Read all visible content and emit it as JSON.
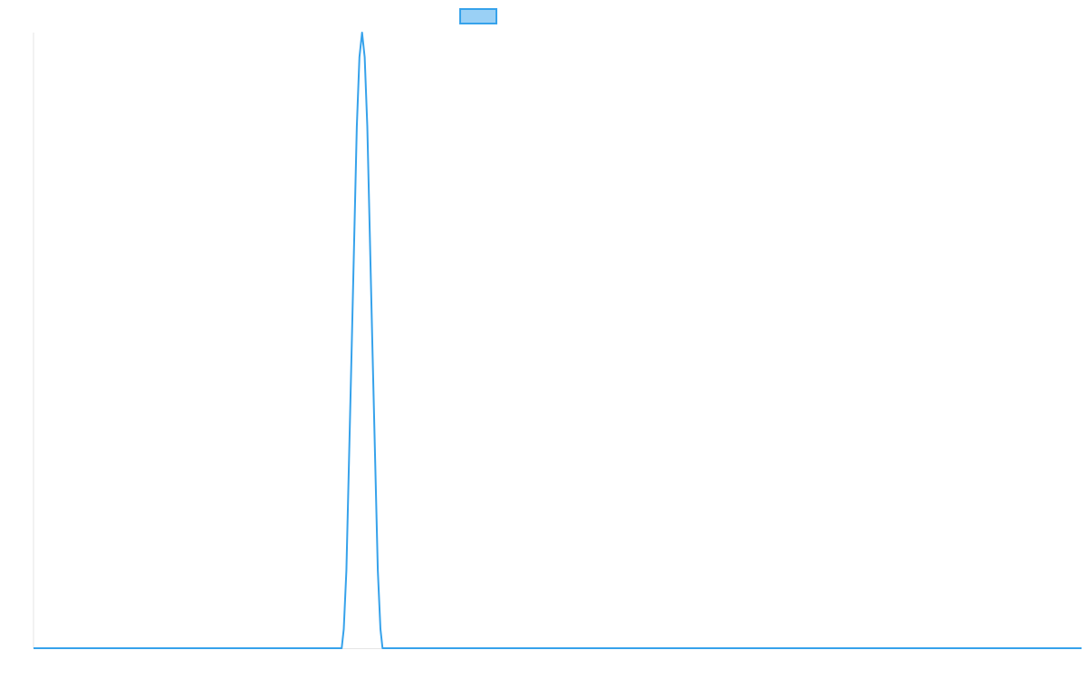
{
  "chart_data": {
    "type": "line",
    "title": "",
    "xlabel": "",
    "ylabel": "",
    "xlim": [
      0,
      100
    ],
    "ylim": [
      0,
      1
    ],
    "grid": false,
    "legend": "top",
    "series": [
      {
        "label": "",
        "color": "#36a2eb",
        "fill_color": "#9ad0f5",
        "points": [
          [
            0,
            0
          ],
          [
            29.4,
            0
          ],
          [
            29.6,
            0.031
          ],
          [
            29.85,
            0.126
          ],
          [
            30.35,
            0.479
          ],
          [
            30.85,
            0.847
          ],
          [
            31.1,
            0.96
          ],
          [
            31.35,
            1.0
          ],
          [
            31.6,
            0.96
          ],
          [
            31.85,
            0.847
          ],
          [
            32.35,
            0.479
          ],
          [
            32.85,
            0.126
          ],
          [
            33.1,
            0.031
          ],
          [
            33.3,
            0
          ],
          [
            100,
            0
          ]
        ]
      }
    ]
  }
}
